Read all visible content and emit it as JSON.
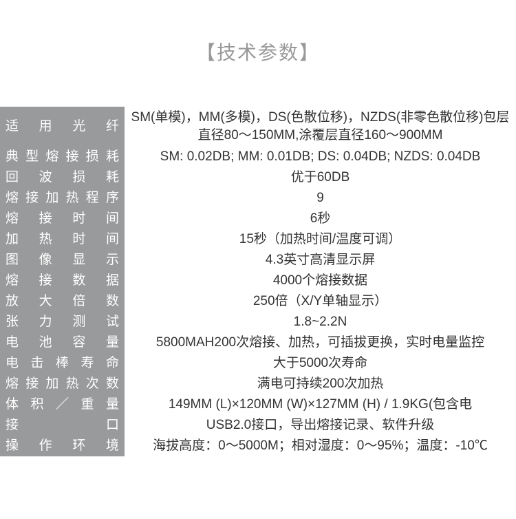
{
  "title": "【技术参数】",
  "rows": [
    {
      "label": "适用光纤",
      "value": "SM(单模)，MM(多模)，DS(色散位移)，NZDS(非零色散位移)包层直径80～150MM,涂覆层直径160～900MM",
      "tall": true
    },
    {
      "label": "典型熔接损耗",
      "value": "SM: 0.02DB; MM: 0.01DB; DS: 0.04DB; NZDS: 0.04DB"
    },
    {
      "label": "回波损耗",
      "value": "优于60DB"
    },
    {
      "label": "熔接加热程序",
      "value": "9"
    },
    {
      "label": "熔接时间",
      "value": "6秒"
    },
    {
      "label": "加热时间",
      "value": "15秒（加热时间/温度可调）"
    },
    {
      "label": "图像显示",
      "value": "4.3英寸高清显示屏"
    },
    {
      "label": "熔接数据",
      "value": "4000个熔接数据"
    },
    {
      "label": "放大倍数",
      "value": "250倍（X/Y单轴显示）"
    },
    {
      "label": "张力测试",
      "value": "1.8~2.2N"
    },
    {
      "label": "电池容量",
      "value": "5800MAH200次熔接、加热，可插拔更换，实时电量监控"
    },
    {
      "label": "电击棒寿命",
      "value": "大于5000次寿命"
    },
    {
      "label": "熔接加热次数",
      "value": "满电可持续200次加热"
    },
    {
      "label": "体积／重量",
      "value": "149MM (L)×120MM (W)×127MM (H) / 1.9KG(包含电"
    },
    {
      "label": "接口",
      "value": "USB2.0接口，导出熔接记录、软件升级"
    },
    {
      "label": "操作环境",
      "value": "海拔高度：0～5000M；相对湿度：0～95%；温度：-10℃"
    }
  ],
  "colors": {
    "label_bg": "#999a9c",
    "label_text": "#fefefe",
    "value_text": "#333333",
    "title_text": "#999999",
    "background": "#ffffff"
  }
}
